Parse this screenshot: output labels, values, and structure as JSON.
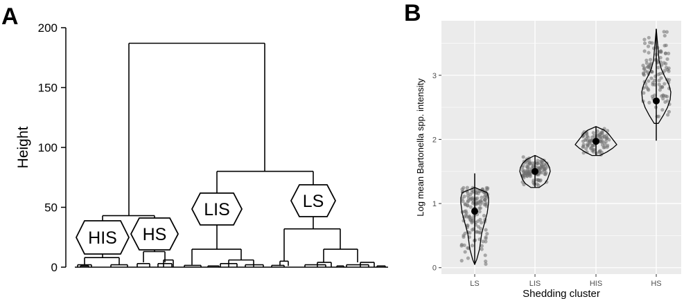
{
  "chart_data": [
    {
      "panel_label": "A",
      "type": "dendrogram",
      "ylabel": "Height",
      "ylim": [
        0,
        200
      ],
      "yticks": [
        0,
        50,
        100,
        150,
        200
      ],
      "cluster_labels": [
        "HIS",
        "HS",
        "LIS",
        "LS"
      ],
      "merges": [
        {
          "between": [
            "HIS",
            "HS"
          ],
          "height": 43
        },
        {
          "between": [
            "LIS",
            "LS"
          ],
          "height": 80
        },
        {
          "between": [
            "HIS+HS",
            "LIS+LS"
          ],
          "height": 187
        }
      ]
    },
    {
      "panel_label": "B",
      "type": "violin",
      "xlabel": "Shedding cluster",
      "ylabel": "Log mean Bartonella spp. intensity",
      "categories": [
        "LS",
        "LIS",
        "HIS",
        "HS"
      ],
      "yticks": [
        0,
        1,
        2,
        3
      ],
      "ylim": [
        -0.1,
        3.85
      ],
      "means": [
        0.88,
        1.5,
        1.97,
        2.6
      ],
      "ranges": [
        [
          0.05,
          1.25
        ],
        [
          1.25,
          1.75
        ],
        [
          1.75,
          2.2
        ],
        [
          2.25,
          3.72
        ]
      ],
      "whiskers": [
        [
          0.05,
          1.47
        ],
        [
          1.25,
          1.75
        ],
        [
          1.75,
          2.2
        ],
        [
          1.98,
          3.72
        ]
      ],
      "grid": true,
      "colors": {
        "panel_bg": "#ebebeb",
        "grid": "#ffffff",
        "points": "#6e6e6e",
        "mean": "#000000"
      }
    }
  ]
}
